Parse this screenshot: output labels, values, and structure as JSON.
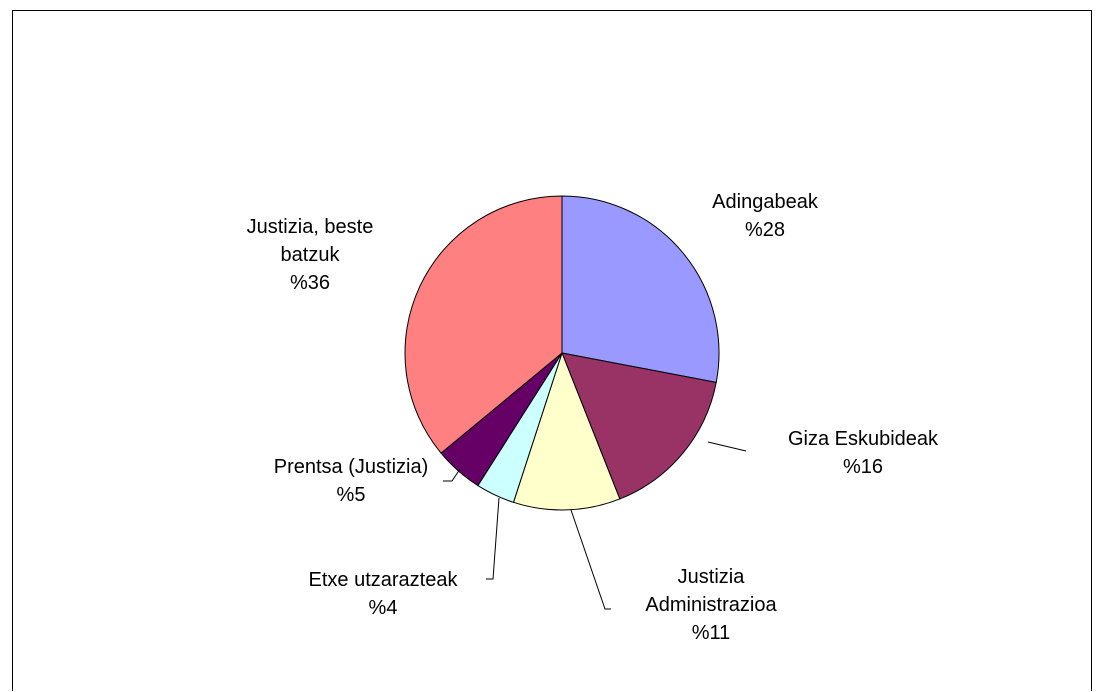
{
  "chart_data": {
    "type": "pie",
    "title": "",
    "slices": [
      {
        "label_lines": [
          "Adingabeak"
        ],
        "percent_label": "%28",
        "value": 28,
        "color": "#9999ff"
      },
      {
        "label_lines": [
          "Giza Eskubideak"
        ],
        "percent_label": "%16",
        "value": 16,
        "color": "#993366"
      },
      {
        "label_lines": [
          "Justizia",
          "Administrazioa"
        ],
        "percent_label": "%11",
        "value": 11,
        "color": "#ffffcc"
      },
      {
        "label_lines": [
          "Etxe utzarazteak"
        ],
        "percent_label": "%4",
        "value": 4,
        "color": "#ccffff"
      },
      {
        "label_lines": [
          "Prentsa (Justizia)"
        ],
        "percent_label": "%5",
        "value": 5,
        "color": "#660066"
      },
      {
        "label_lines": [
          "Justizia, beste",
          "batzuk"
        ],
        "percent_label": "%36",
        "value": 36,
        "color": "#ff8080"
      }
    ],
    "start_angle": "12 o'clock",
    "direction": "clockwise",
    "legend": "none",
    "data_labels": "outside"
  }
}
